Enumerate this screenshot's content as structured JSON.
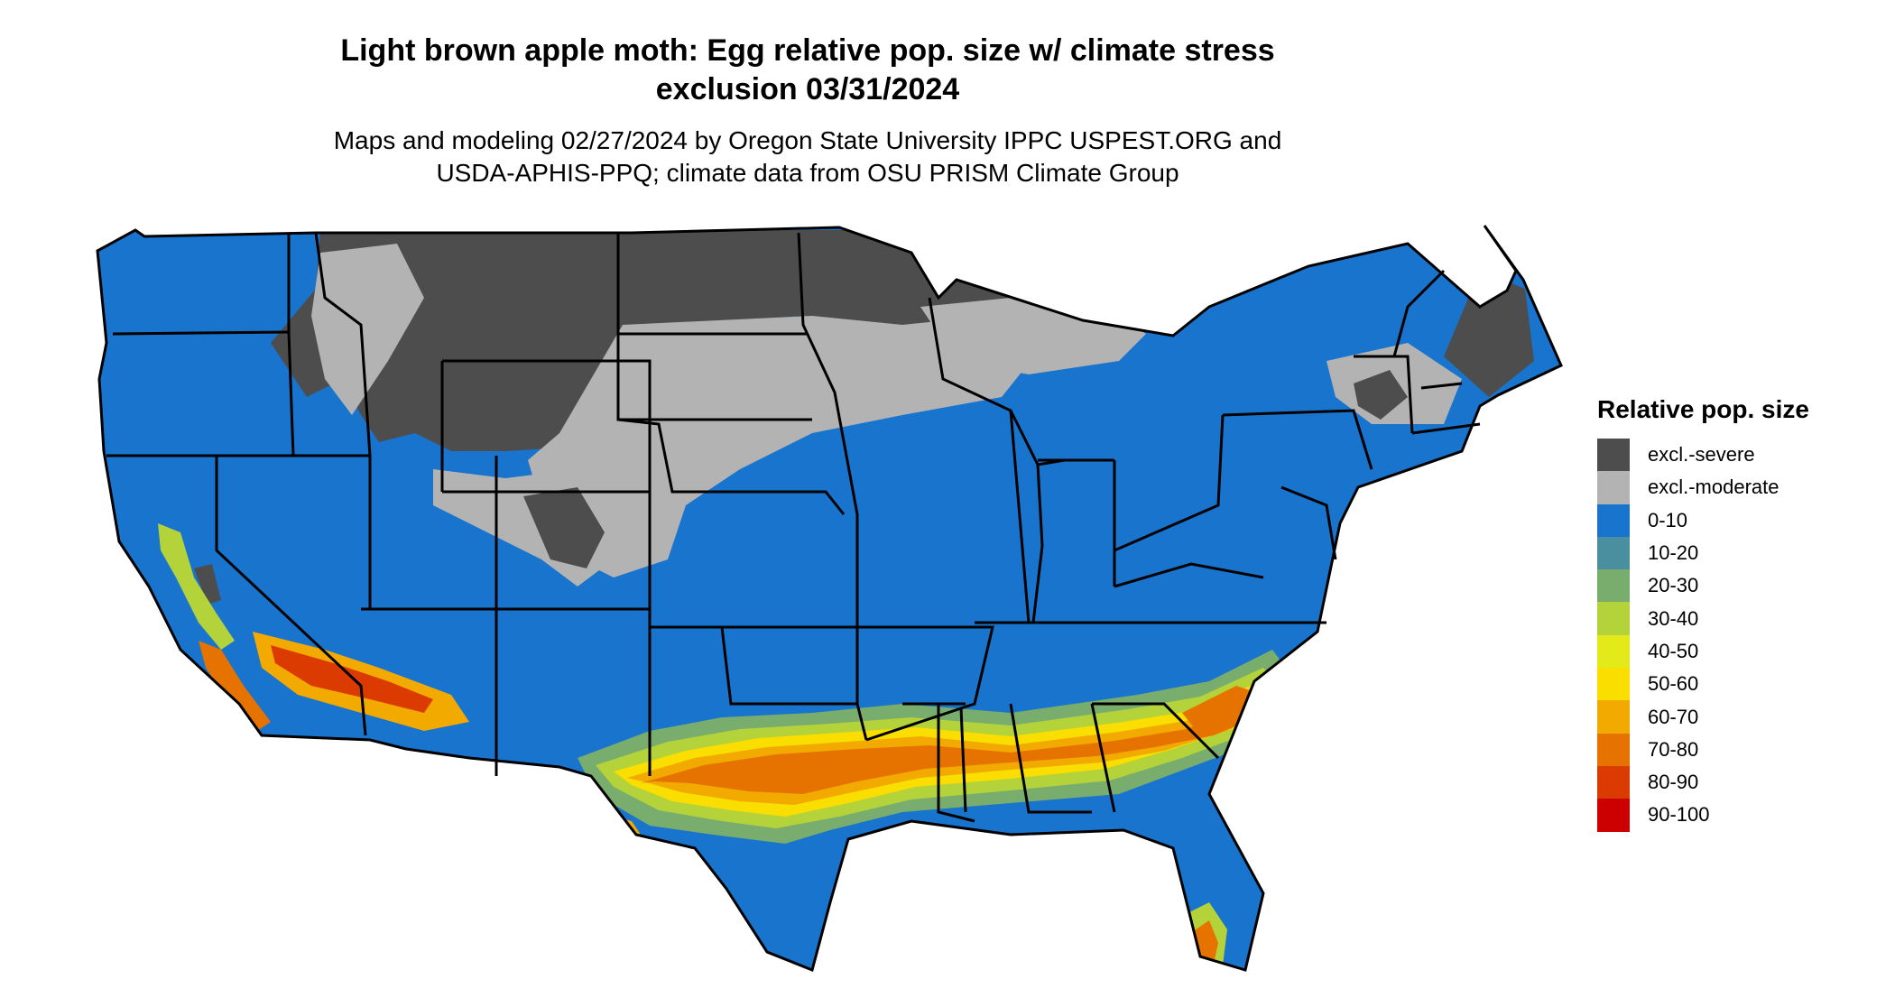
{
  "header": {
    "title_line1": "Light brown apple moth: Egg relative pop. size w/ climate stress",
    "title_line2": "exclusion 03/31/2024",
    "subtitle_line1": "Maps and modeling 02/27/2024 by Oregon State University IPPC USPEST.ORG and",
    "subtitle_line2": "USDA-APHIS-PPQ; climate data from OSU PRISM Climate Group"
  },
  "legend": {
    "title": "Relative pop. size",
    "items": [
      {
        "label": "excl.-severe",
        "color": "#4d4d4d"
      },
      {
        "label": "excl.-moderate",
        "color": "#b3b3b3"
      },
      {
        "label": "0-10",
        "color": "#1874cd"
      },
      {
        "label": "10-20",
        "color": "#4a8f9f"
      },
      {
        "label": "20-30",
        "color": "#79ad6d"
      },
      {
        "label": "30-40",
        "color": "#b4d23a"
      },
      {
        "label": "40-50",
        "color": "#e3ea1a"
      },
      {
        "label": "50-60",
        "color": "#f9de00"
      },
      {
        "label": "60-70",
        "color": "#f2a900"
      },
      {
        "label": "70-80",
        "color": "#e67300"
      },
      {
        "label": "80-90",
        "color": "#db3b00"
      },
      {
        "label": "90-100",
        "color": "#cc0000"
      }
    ]
  },
  "map": {
    "region": "conterminous United States",
    "colors": {
      "land": "#1874cd",
      "border": "#000000",
      "severe": "#4d4d4d",
      "moderate": "#b3b3b3",
      "c10_20": "#4a8f9f",
      "c20_30": "#79ad6d",
      "c30_40": "#b4d23a",
      "c40_50": "#e3ea1a",
      "c50_60": "#f9de00",
      "c60_70": "#f2a900",
      "c70_80": "#e67300",
      "c80_90": "#db3b00"
    }
  }
}
